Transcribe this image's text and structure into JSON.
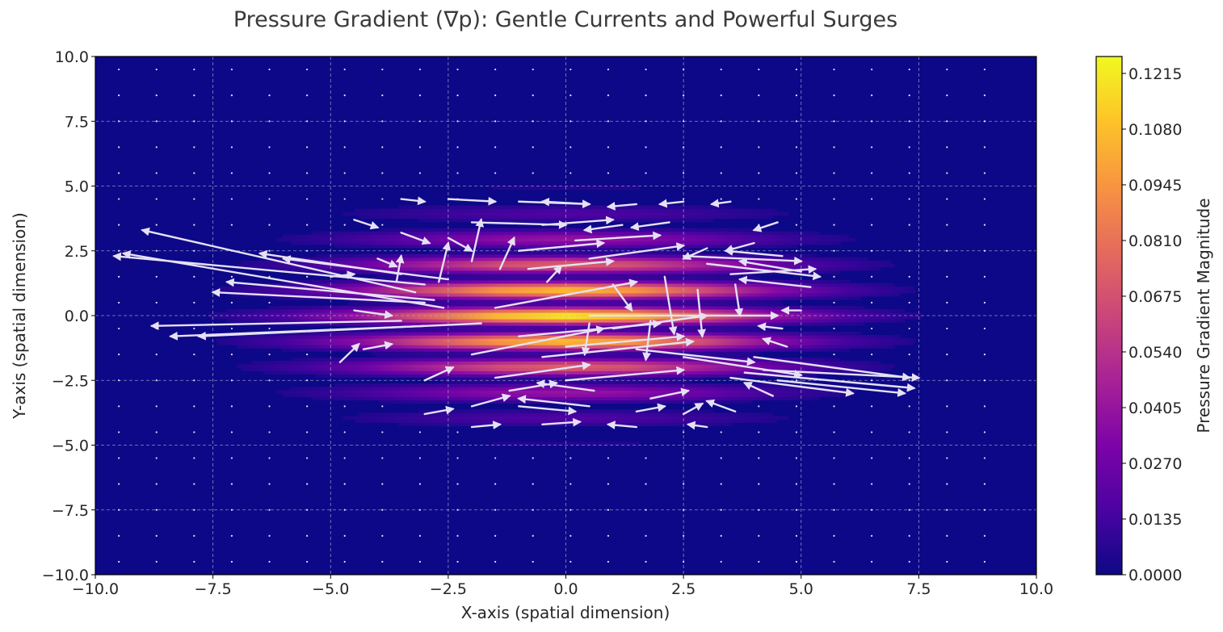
{
  "chart_data": {
    "type": "heatmap",
    "subtype": "quiver_over_heatmap",
    "title": "Pressure Gradient (∇p): Gentle Currents and Powerful Surges",
    "xlabel": "X-axis (spatial dimension)",
    "ylabel": "Y-axis (spatial dimension)",
    "xlim": [
      -10,
      10
    ],
    "ylim": [
      -10,
      10
    ],
    "xticks": [
      -10,
      -7.5,
      -5,
      -2.5,
      0,
      2.5,
      5,
      7.5,
      10
    ],
    "yticks": [
      -10,
      -7.5,
      -5,
      -2.5,
      0,
      2.5,
      5,
      7.5,
      10
    ],
    "xtick_labels": [
      "−10.0",
      "−7.5",
      "−5.0",
      "−2.5",
      "0.0",
      "2.5",
      "5.0",
      "7.5",
      "10.0"
    ],
    "ytick_labels": [
      "−10.0",
      "−7.5",
      "−5.0",
      "−2.5",
      "0.0",
      "2.5",
      "5.0",
      "7.5",
      "10.0"
    ],
    "grid": true,
    "colormap": "plasma",
    "colorbar": {
      "label": "Pressure Gradient Magnitude",
      "min": 0.0,
      "max": 0.1256,
      "ticks": [
        0.0,
        0.0135,
        0.027,
        0.0405,
        0.054,
        0.0675,
        0.081,
        0.0945,
        0.108,
        0.1215
      ],
      "tick_labels": [
        "0.0000",
        "0.0135",
        "0.0270",
        "0.0405",
        "0.0540",
        "0.0675",
        "0.0810",
        "0.0945",
        "0.1080",
        "0.1215"
      ]
    },
    "field": {
      "center": [
        0,
        0
      ],
      "sigma_x": 3.0,
      "sigma_y": 2.0,
      "stripe_period_y": 1.0,
      "peak": 0.1256
    },
    "arrow_color": "#e6e0f5",
    "background_color": "#0d0887",
    "arrows": [
      {
        "x": -3.0,
        "y": 1.2,
        "u": -6.6,
        "v": 1.1
      },
      {
        "x": -3.2,
        "y": 0.9,
        "u": -5.8,
        "v": 2.4
      },
      {
        "x": -2.6,
        "y": 0.3,
        "u": -6.8,
        "v": 2.1
      },
      {
        "x": -3.5,
        "y": -0.2,
        "u": -5.3,
        "v": -0.2
      },
      {
        "x": -2.8,
        "y": 0.6,
        "u": -4.4,
        "v": 0.7
      },
      {
        "x": -3.0,
        "y": -0.4,
        "u": -5.4,
        "v": -0.4
      },
      {
        "x": -3.5,
        "y": 1.6,
        "u": -3.0,
        "v": 0.8
      },
      {
        "x": -2.5,
        "y": 1.4,
        "u": -3.5,
        "v": 0.8
      },
      {
        "x": -3.0,
        "y": 0.5,
        "u": -4.5,
        "v": 0.4
      },
      {
        "x": -1.8,
        "y": -0.3,
        "u": -6.0,
        "v": -0.5
      },
      {
        "x": 4.0,
        "y": -1.6,
        "u": 3.3,
        "v": -0.8
      },
      {
        "x": 4.2,
        "y": -2.1,
        "u": 3.3,
        "v": -0.3
      },
      {
        "x": 3.8,
        "y": -2.2,
        "u": 3.6,
        "v": -0.6
      },
      {
        "x": 4.5,
        "y": -2.5,
        "u": 2.7,
        "v": -0.5
      },
      {
        "x": 3.5,
        "y": -2.4,
        "u": 2.6,
        "v": -0.6
      },
      {
        "x": 2.5,
        "y": -1.6,
        "u": 2.5,
        "v": -0.7
      },
      {
        "x": 1.5,
        "y": -1.3,
        "u": 2.5,
        "v": -0.5
      },
      {
        "x": 3.0,
        "y": 2.0,
        "u": 2.4,
        "v": -0.5
      },
      {
        "x": 3.5,
        "y": 1.6,
        "u": 1.8,
        "v": 0.2
      },
      {
        "x": 2.5,
        "y": 2.3,
        "u": 2.5,
        "v": -0.2
      },
      {
        "x": -1.5,
        "y": 0.3,
        "u": 3.0,
        "v": 1.0
      },
      {
        "x": 0.5,
        "y": 0.0,
        "u": 4.0,
        "v": 0.0
      },
      {
        "x": -1.0,
        "y": -0.8,
        "u": 3.0,
        "v": 0.5
      },
      {
        "x": -2.0,
        "y": -1.5,
        "u": 2.8,
        "v": 1.0
      },
      {
        "x": 0.0,
        "y": -1.2,
        "u": 2.5,
        "v": 0.4
      },
      {
        "x": -0.5,
        "y": -1.6,
        "u": 3.2,
        "v": 0.6
      },
      {
        "x": 1.0,
        "y": -0.5,
        "u": 2.0,
        "v": 0.5
      },
      {
        "x": -0.8,
        "y": 1.8,
        "u": 1.8,
        "v": 0.3
      },
      {
        "x": 0.5,
        "y": 2.2,
        "u": 2.0,
        "v": 0.5
      },
      {
        "x": -1.0,
        "y": 2.5,
        "u": 1.8,
        "v": 0.3
      },
      {
        "x": 0.2,
        "y": 2.9,
        "u": 1.8,
        "v": 0.2
      },
      {
        "x": -2.0,
        "y": 3.6,
        "u": 2.0,
        "v": -0.1
      },
      {
        "x": -0.5,
        "y": 3.5,
        "u": 1.5,
        "v": 0.2
      },
      {
        "x": -1.0,
        "y": 4.4,
        "u": 1.5,
        "v": -0.1
      },
      {
        "x": 0.5,
        "y": 4.3,
        "u": -1.0,
        "v": 0.1
      },
      {
        "x": -2.5,
        "y": 4.5,
        "u": 1.0,
        "v": -0.1
      },
      {
        "x": 0.0,
        "y": -2.5,
        "u": 2.5,
        "v": 0.4
      },
      {
        "x": -1.5,
        "y": -2.4,
        "u": 2.0,
        "v": 0.5
      },
      {
        "x": 0.5,
        "y": -3.5,
        "u": -1.5,
        "v": 0.3
      },
      {
        "x": -1.0,
        "y": -3.5,
        "u": 1.2,
        "v": -0.2
      },
      {
        "x": -2.0,
        "y": 2.1,
        "u": 0.2,
        "v": 1.6
      },
      {
        "x": -2.7,
        "y": 1.3,
        "u": 0.2,
        "v": 1.5
      },
      {
        "x": -3.6,
        "y": 1.3,
        "u": 0.1,
        "v": 1.0
      },
      {
        "x": -1.4,
        "y": 1.8,
        "u": 0.3,
        "v": 1.2
      },
      {
        "x": 1.0,
        "y": 1.2,
        "u": 0.4,
        "v": -1.0
      },
      {
        "x": 2.1,
        "y": 1.5,
        "u": 0.2,
        "v": -2.2
      },
      {
        "x": 2.8,
        "y": 1.0,
        "u": 0.1,
        "v": -1.8
      },
      {
        "x": 3.6,
        "y": 1.2,
        "u": 0.1,
        "v": -1.2
      },
      {
        "x": 0.5,
        "y": -0.3,
        "u": -0.1,
        "v": -1.2
      },
      {
        "x": 1.8,
        "y": -0.2,
        "u": -0.1,
        "v": -1.5
      },
      {
        "x": -0.4,
        "y": 1.3,
        "u": 0.3,
        "v": 0.6
      },
      {
        "x": 5.0,
        "y": 1.7,
        "u": -1.3,
        "v": 0.4
      },
      {
        "x": 5.2,
        "y": 1.1,
        "u": -1.5,
        "v": 0.3
      },
      {
        "x": 4.6,
        "y": 2.3,
        "u": -1.2,
        "v": 0.2
      },
      {
        "x": -4.8,
        "y": -1.8,
        "u": 0.4,
        "v": 0.7
      },
      {
        "x": -4.5,
        "y": 0.2,
        "u": 0.8,
        "v": -0.2
      },
      {
        "x": -3.0,
        "y": -2.5,
        "u": 0.6,
        "v": 0.5
      },
      {
        "x": -2.0,
        "y": -3.5,
        "u": 0.8,
        "v": 0.4
      },
      {
        "x": 1.5,
        "y": -3.7,
        "u": 0.6,
        "v": 0.2
      },
      {
        "x": 2.5,
        "y": -3.8,
        "u": 0.4,
        "v": 0.4
      },
      {
        "x": 3.6,
        "y": -3.7,
        "u": -0.6,
        "v": 0.4
      },
      {
        "x": 4.4,
        "y": -3.1,
        "u": -0.6,
        "v": 0.5
      },
      {
        "x": -3.5,
        "y": 3.2,
        "u": 0.6,
        "v": -0.4
      },
      {
        "x": -2.5,
        "y": 3.0,
        "u": 0.5,
        "v": -0.5
      },
      {
        "x": 3.0,
        "y": 2.6,
        "u": -0.5,
        "v": -0.4
      },
      {
        "x": 4.0,
        "y": 2.8,
        "u": -0.6,
        "v": -0.3
      },
      {
        "x": -4.5,
        "y": 3.7,
        "u": 0.5,
        "v": -0.3
      },
      {
        "x": 4.5,
        "y": 3.6,
        "u": -0.5,
        "v": -0.3
      },
      {
        "x": -4.0,
        "y": 2.2,
        "u": 0.4,
        "v": -0.3
      },
      {
        "x": 4.7,
        "y": -1.2,
        "u": -0.5,
        "v": 0.3
      },
      {
        "x": 1.8,
        "y": -3.2,
        "u": 0.8,
        "v": 0.3
      },
      {
        "x": 1.2,
        "y": 3.5,
        "u": -0.8,
        "v": -0.2
      },
      {
        "x": 2.2,
        "y": 3.6,
        "u": -0.8,
        "v": -0.2
      },
      {
        "x": 2.5,
        "y": 4.4,
        "u": -0.5,
        "v": -0.1
      },
      {
        "x": 3.5,
        "y": 4.4,
        "u": -0.4,
        "v": -0.1
      },
      {
        "x": 1.5,
        "y": 4.3,
        "u": -0.6,
        "v": -0.1
      },
      {
        "x": -3.5,
        "y": 4.5,
        "u": 0.5,
        "v": -0.1
      },
      {
        "x": -0.5,
        "y": -4.2,
        "u": 0.8,
        "v": 0.1
      },
      {
        "x": -2.0,
        "y": -4.3,
        "u": 0.6,
        "v": 0.1
      },
      {
        "x": 1.5,
        "y": -4.3,
        "u": -0.6,
        "v": 0.1
      },
      {
        "x": 3.0,
        "y": -4.3,
        "u": -0.4,
        "v": 0.1
      },
      {
        "x": -3.0,
        "y": -3.8,
        "u": 0.6,
        "v": 0.2
      },
      {
        "x": 0.6,
        "y": -2.9,
        "u": -1.2,
        "v": 0.3
      },
      {
        "x": -1.2,
        "y": -2.9,
        "u": 1.0,
        "v": 0.3
      },
      {
        "x": -4.3,
        "y": -1.3,
        "u": 0.6,
        "v": 0.2
      },
      {
        "x": 4.6,
        "y": -0.5,
        "u": -0.5,
        "v": 0.1
      },
      {
        "x": 5.0,
        "y": 0.2,
        "u": -0.4,
        "v": 0.0
      },
      {
        "x": -5.0,
        "y": 1.5,
        "u": 0.5,
        "v": 0.1
      }
    ]
  }
}
